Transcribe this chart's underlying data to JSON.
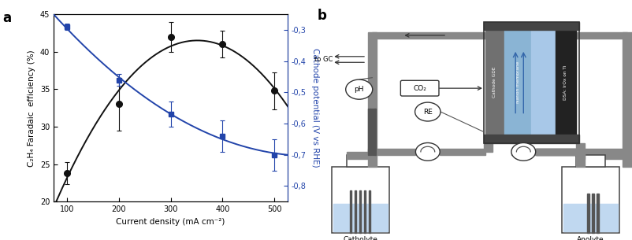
{
  "panel_a": {
    "x": [
      100,
      200,
      300,
      400,
      500
    ],
    "black_y": [
      23.8,
      33.0,
      42.0,
      41.0,
      34.8
    ],
    "black_yerr": [
      1.5,
      3.5,
      2.0,
      1.8,
      2.5
    ],
    "blue_y": [
      -0.29,
      -0.46,
      -0.57,
      -0.64,
      -0.7
    ],
    "blue_yerr": [
      0.01,
      0.02,
      0.04,
      0.05,
      0.05
    ],
    "xlabel": "Current density (mA cm⁻²)",
    "ylabel_left": "C₂H₄ Faradaic  efficiency (%)",
    "ylabel_right": "Cathode potential (V vs RHE)",
    "ylim_left": [
      20,
      45
    ],
    "ylim_right": [
      -0.85,
      -0.25
    ],
    "yticks_left": [
      20,
      25,
      30,
      35,
      40,
      45
    ],
    "yticks_right": [
      -0.8,
      -0.7,
      -0.6,
      -0.5,
      -0.4,
      -0.3
    ],
    "ytick_labels_right": [
      "-0,8",
      "-0,7",
      "-0,6",
      "-0,5",
      "-0,4",
      "-0,3"
    ],
    "xticks": [
      100,
      200,
      300,
      400,
      500
    ],
    "black_color": "#111111",
    "blue_color": "#2244aa",
    "line_color_black": "#111111",
    "line_color_blue": "#2244aa"
  },
  "panel_b": {
    "label": "b",
    "catholyte_label": "Catholyte",
    "anolyte_label": "Anolyte",
    "to_gc_label": "to GC",
    "co2_label": "CO₂",
    "re_label": "RE",
    "ph_label": "pH",
    "cathode_gde_label": "Cathode GDE",
    "nafion_label": "Nafion membrane",
    "dsa_label": "DSA: IrOx on Ti",
    "liquid_color": "#c0d8f0"
  }
}
